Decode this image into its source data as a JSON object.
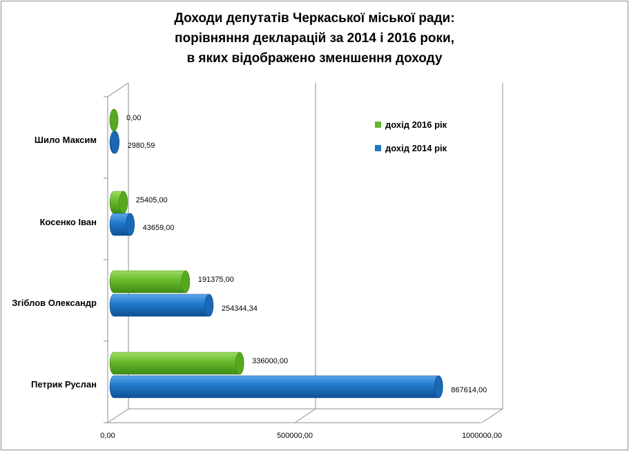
{
  "chart_data": {
    "type": "bar",
    "orientation": "horizontal",
    "style": "3d-cylinder",
    "title_lines": [
      "Доходи депутатів Черкаської міської ради:",
      "порівняння декларацій за 2014 і 2016 роки,",
      "в яких відображено зменшення доходу"
    ],
    "categories": [
      "Шило Максим",
      "Косенко Іван",
      "Згіблов Олександр",
      "Петрик Руслан"
    ],
    "series": [
      {
        "name": "дохід 2016 рік",
        "color": "#66b82b",
        "values": [
          0,
          25405,
          191375,
          336000
        ],
        "labels": [
          "0,00",
          "25405,00",
          "191375,00",
          "336000,00"
        ]
      },
      {
        "name": "дохід 2014 рік",
        "color": "#1f78c8",
        "values": [
          2980.59,
          43659,
          254344.34,
          867614
        ],
        "labels": [
          "2980,59",
          "43659,00",
          "254344,34",
          "867614,00"
        ]
      }
    ],
    "xlim": [
      0,
      1000000
    ],
    "x_ticks": [
      0,
      500000,
      1000000
    ],
    "x_tick_labels": [
      "0,00",
      "500000,00",
      "1000000,00"
    ],
    "gridlines": true,
    "legend_position": "top-right"
  }
}
